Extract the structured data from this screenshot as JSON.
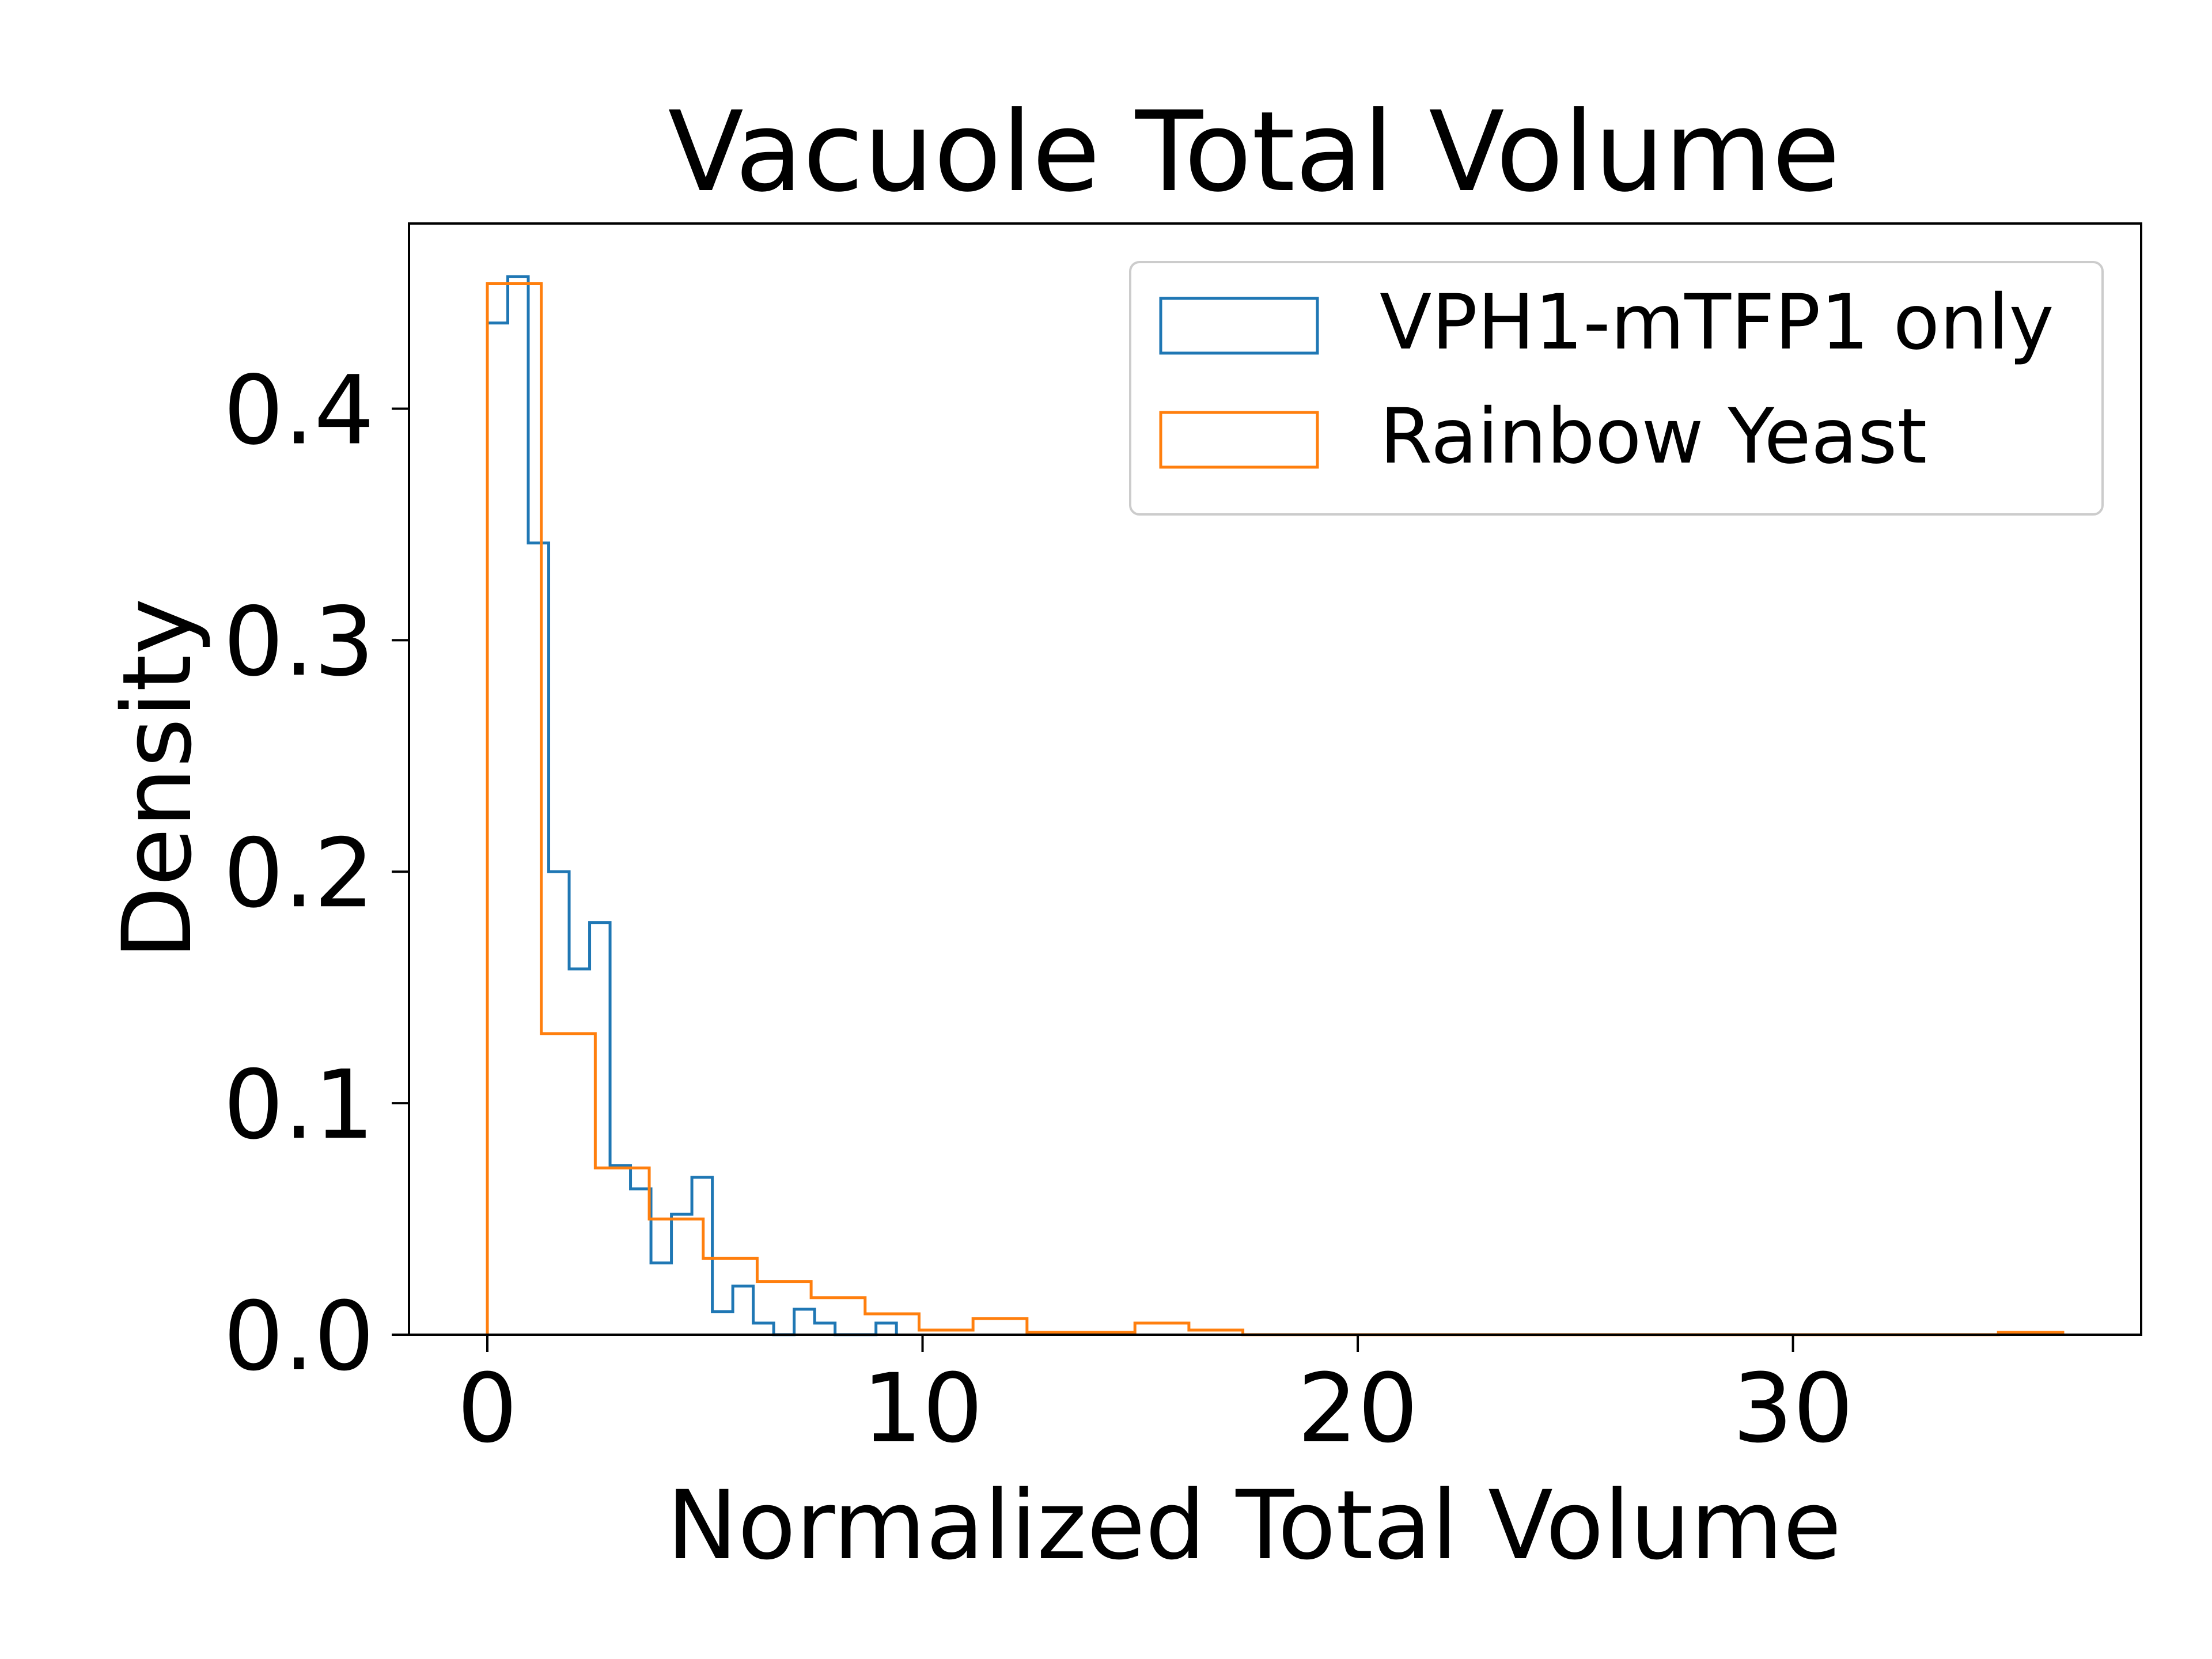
{
  "chart_data": {
    "type": "histogram",
    "title": "Vacuole Total Volume",
    "xlabel": "Normalized Total Volume",
    "ylabel": "Density",
    "xlim": [
      -1.8,
      38.0
    ],
    "ylim": [
      0,
      0.48
    ],
    "xticks": [
      {
        "value": 0,
        "label": "0"
      },
      {
        "value": 10,
        "label": "10"
      },
      {
        "value": 20,
        "label": "20"
      },
      {
        "value": 30,
        "label": "30"
      }
    ],
    "yticks": [
      {
        "value": 0.0,
        "label": "0.0"
      },
      {
        "value": 0.1,
        "label": "0.1"
      },
      {
        "value": 0.2,
        "label": "0.2"
      },
      {
        "value": 0.3,
        "label": "0.3"
      },
      {
        "value": 0.4,
        "label": "0.4"
      }
    ],
    "grid": false,
    "legend_position": "top-right",
    "series": [
      {
        "name": "VPH1-mTFP1 only",
        "color": "#1f77b4",
        "bin_edges": [
          0.0,
          0.47,
          0.94,
          1.41,
          1.88,
          2.35,
          2.82,
          3.29,
          3.76,
          4.23,
          4.7,
          5.17,
          5.64,
          6.11,
          6.58,
          7.05,
          7.52,
          7.99,
          8.46,
          8.93,
          9.4
        ],
        "values": [
          0.437,
          0.457,
          0.342,
          0.2,
          0.158,
          0.178,
          0.073,
          0.063,
          0.031,
          0.052,
          0.068,
          0.01,
          0.021,
          0.005,
          0.0,
          0.011,
          0.005,
          0.0,
          0.0,
          0.005
        ]
      },
      {
        "name": "Rainbow Yeast",
        "color": "#ff7f0e",
        "bin_edges": [
          0.0,
          1.24,
          2.48,
          3.72,
          4.96,
          6.2,
          7.44,
          8.68,
          9.92,
          11.16,
          12.4,
          13.64,
          14.88,
          16.12,
          17.36,
          18.6,
          19.84,
          21.08,
          22.32,
          23.56,
          24.8,
          26.04,
          27.28,
          28.52,
          29.76,
          31.0,
          32.24,
          33.48,
          34.72,
          35.96,
          36.2
        ],
        "values": [
          0.454,
          0.13,
          0.072,
          0.05,
          0.033,
          0.023,
          0.016,
          0.009,
          0.002,
          0.007,
          0.001,
          0.001,
          0.005,
          0.002,
          0.0,
          0.0,
          0.0,
          0.0,
          0.0,
          0.0,
          0.0,
          0.0,
          0.0,
          0.0,
          0.0,
          0.0,
          0.0,
          0.0,
          0.001,
          0.001
        ]
      }
    ]
  }
}
